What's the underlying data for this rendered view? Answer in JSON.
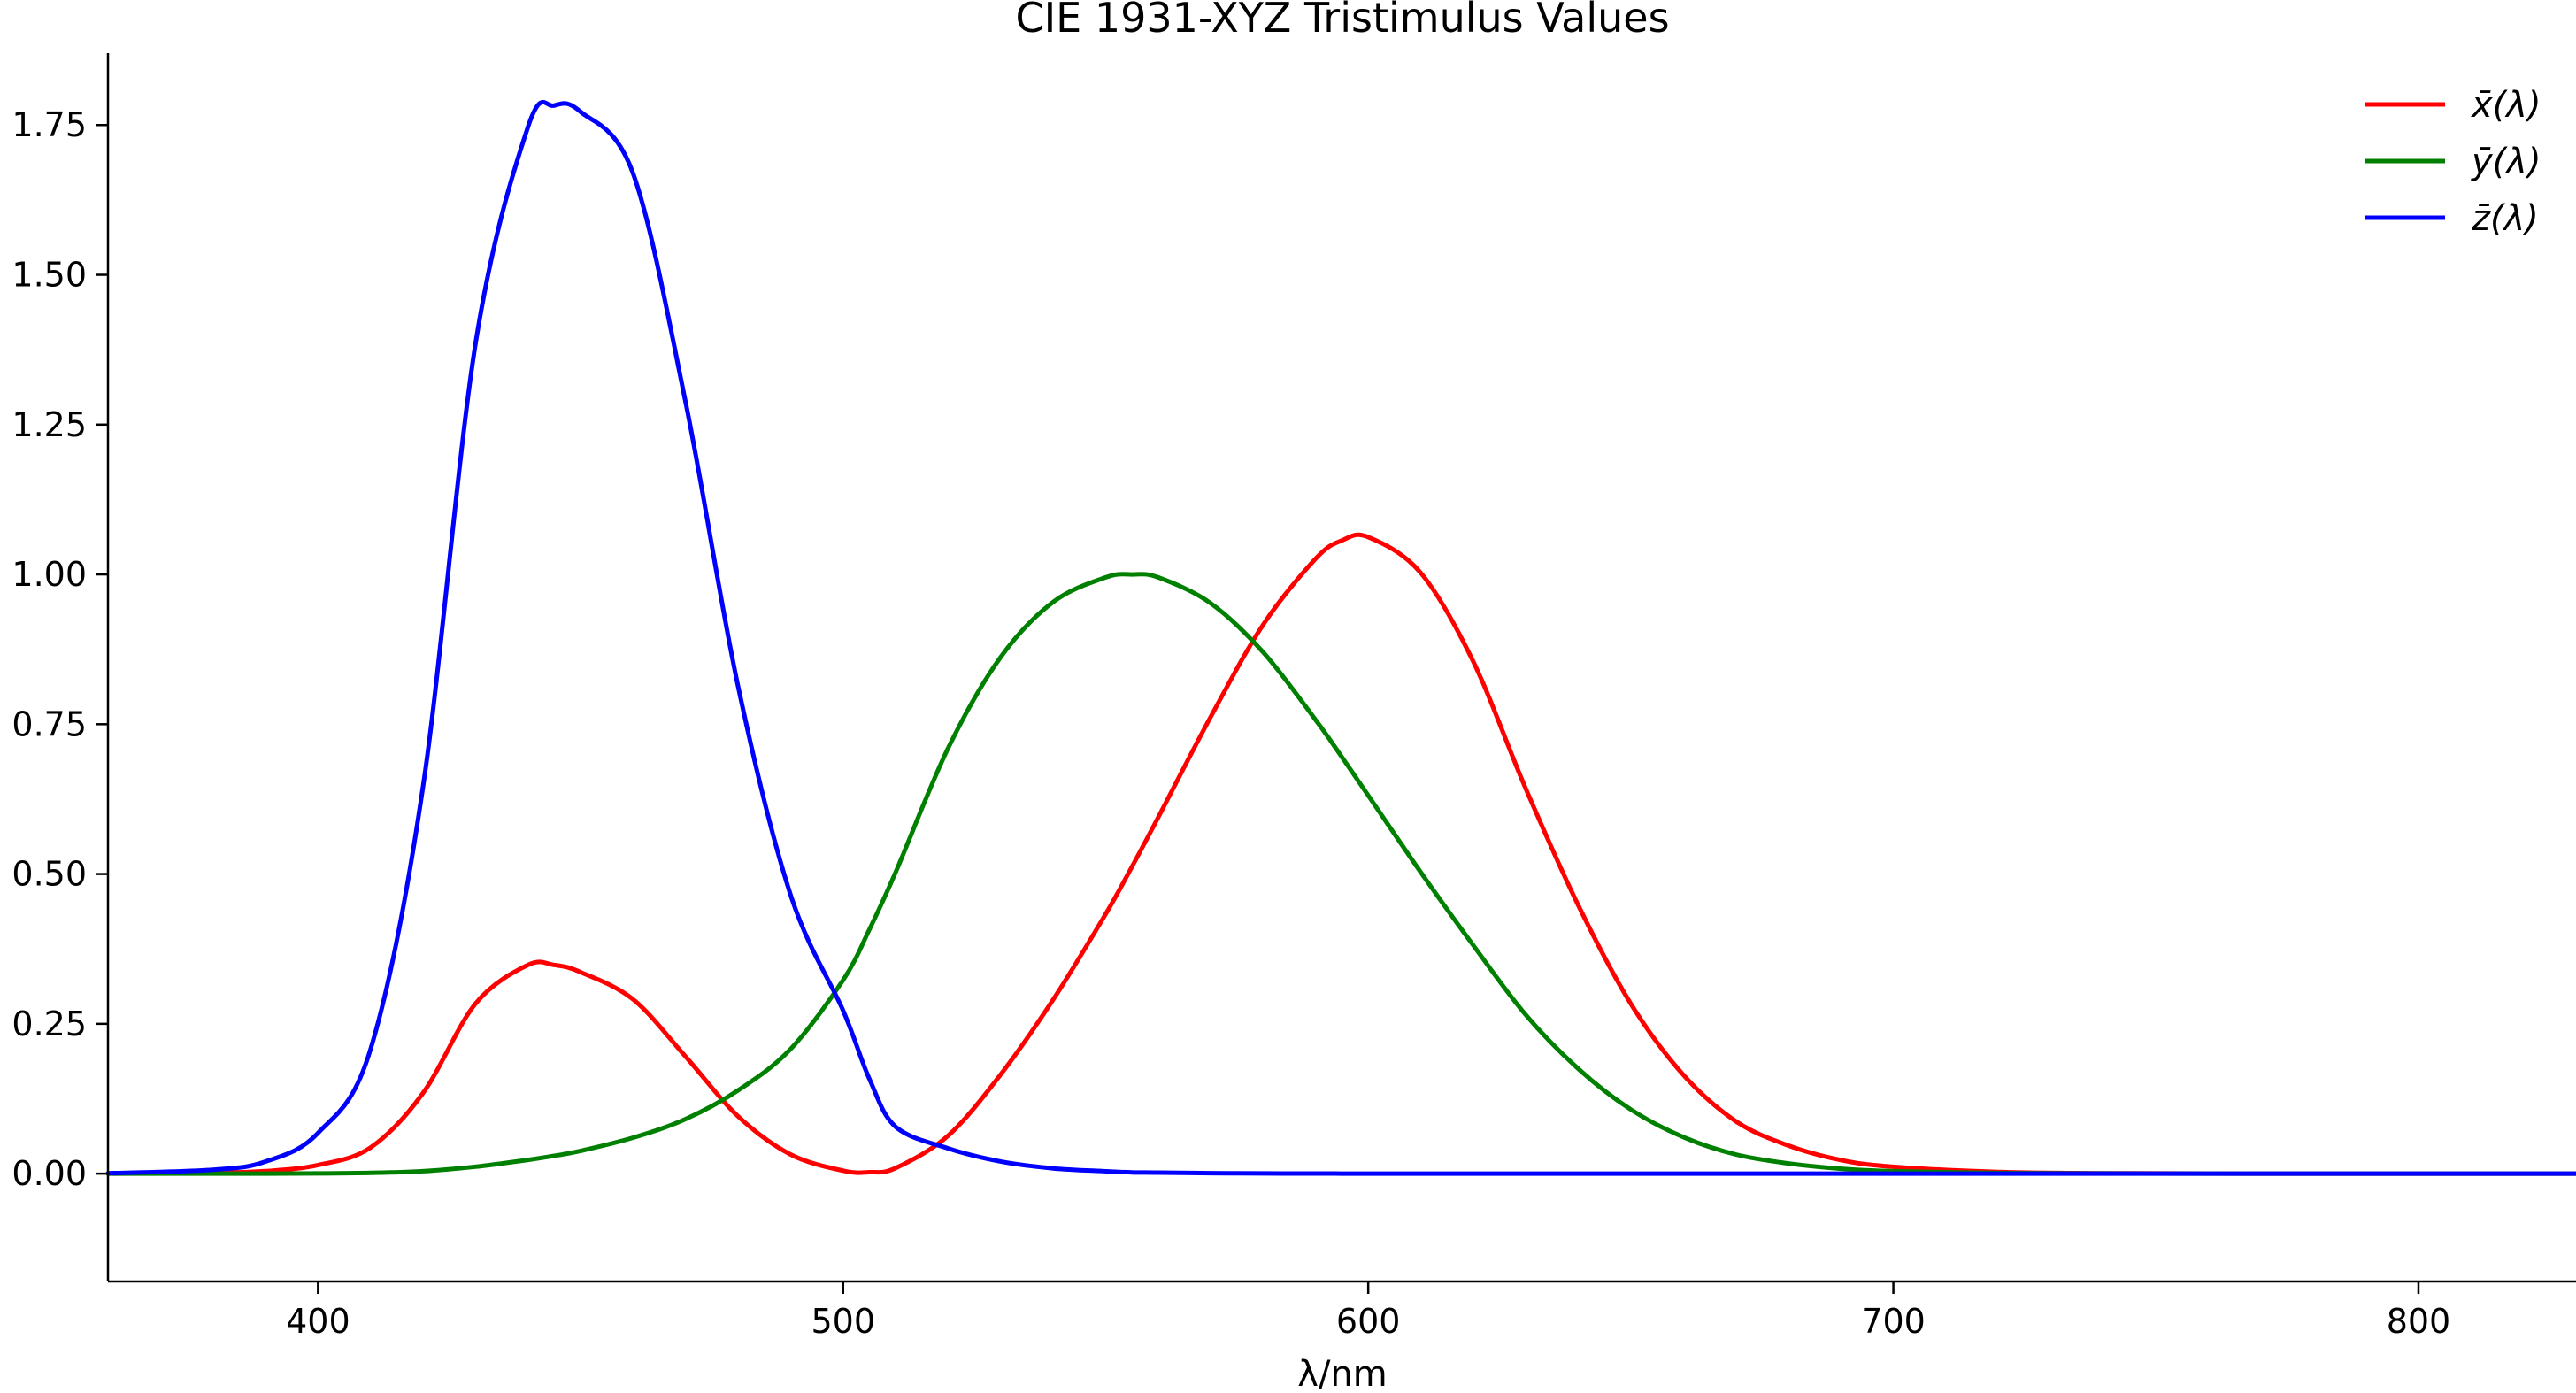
{
  "chart_data": {
    "type": "line",
    "title": "CIE 1931-XYZ Tristimulus Values",
    "xlabel": "λ/nm",
    "ylabel": "",
    "xlim": [
      360,
      830
    ],
    "ylim": [
      -0.18,
      1.87
    ],
    "xticks": [
      400,
      500,
      600,
      700,
      800
    ],
    "yticks": [
      0.0,
      0.25,
      0.5,
      0.75,
      1.0,
      1.25,
      1.5,
      1.75
    ],
    "ytick_labels": [
      "0.00",
      "0.25",
      "0.50",
      "0.75",
      "1.00",
      "1.25",
      "1.50",
      "1.75"
    ],
    "grid": false,
    "legend_position": "top-right",
    "x": [
      360,
      380,
      390,
      400,
      410,
      420,
      430,
      440,
      445,
      450,
      460,
      470,
      480,
      490,
      500,
      505,
      510,
      520,
      530,
      540,
      550,
      555,
      560,
      570,
      580,
      590,
      595,
      600,
      610,
      620,
      630,
      640,
      650,
      660,
      670,
      680,
      690,
      700,
      720,
      740,
      760,
      780,
      800,
      830
    ],
    "series": [
      {
        "name": "x̄(λ)",
        "color": "#ff0000",
        "values": [
          0.0001,
          0.0014,
          0.0042,
          0.0143,
          0.0435,
          0.1344,
          0.2839,
          0.3483,
          0.3481,
          0.3362,
          0.2908,
          0.1954,
          0.0956,
          0.032,
          0.0049,
          0.0024,
          0.0093,
          0.0633,
          0.1655,
          0.2904,
          0.4334,
          0.5121,
          0.5945,
          0.7621,
          0.9163,
          1.0263,
          1.0567,
          1.0622,
          1.0026,
          0.8544,
          0.6424,
          0.4479,
          0.2835,
          0.1649,
          0.0874,
          0.0468,
          0.0227,
          0.0114,
          0.0029,
          0.0007,
          0.0002,
          4e-05,
          1e-05,
          0.0
        ]
      },
      {
        "name": "ȳ(λ)",
        "color": "#008000",
        "values": [
          0.0,
          0.0,
          0.0001,
          0.0004,
          0.0012,
          0.004,
          0.0116,
          0.023,
          0.0298,
          0.038,
          0.06,
          0.091,
          0.139,
          0.208,
          0.323,
          0.4073,
          0.503,
          0.71,
          0.862,
          0.954,
          0.995,
          1.0,
          0.995,
          0.952,
          0.87,
          0.757,
          0.6949,
          0.631,
          0.503,
          0.381,
          0.265,
          0.175,
          0.107,
          0.061,
          0.032,
          0.017,
          0.0082,
          0.0041,
          0.001,
          0.0003,
          0.0001,
          2e-05,
          0.0,
          0.0
        ]
      },
      {
        "name": "z̄(λ)",
        "color": "#0000ff",
        "values": [
          0.0006,
          0.0065,
          0.0201,
          0.0679,
          0.2074,
          0.6456,
          1.3856,
          1.7471,
          1.7826,
          1.7721,
          1.6692,
          1.2876,
          0.813,
          0.4652,
          0.272,
          0.1582,
          0.0782,
          0.0422,
          0.0203,
          0.0088,
          0.0039,
          0.0021,
          0.0017,
          0.0008,
          0.0003,
          0.0002,
          0.0001,
          0.0,
          0.0,
          0.0,
          0.0,
          0.0,
          0.0,
          0.0,
          0.0,
          0.0,
          0.0,
          0.0,
          0.0,
          0.0,
          0.0,
          0.0,
          0.0,
          0.0
        ]
      }
    ]
  }
}
